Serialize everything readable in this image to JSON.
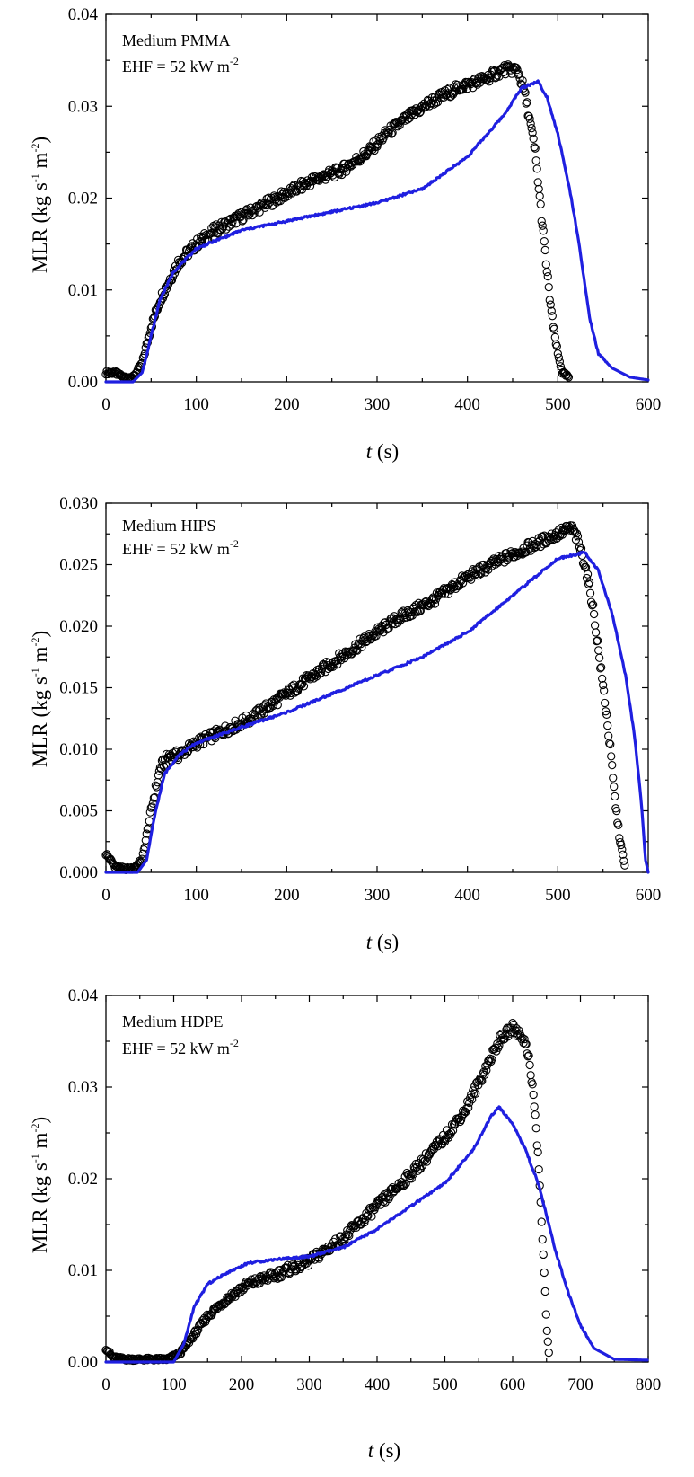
{
  "charts": [
    {
      "annotation": {
        "line1": "Medium PMMA",
        "line2_prefix": "EHF = 52 kW m",
        "line2_sup": "-2"
      },
      "ylabel": {
        "main": "MLR (kg s",
        "sup1": "-1",
        "mid": " m",
        "sup2": "-2",
        "end": ")"
      },
      "xlabel": {
        "var": "t",
        "unit": " (s)"
      }
    },
    {
      "annotation": {
        "line1": "Medium HIPS",
        "line2_prefix": "EHF = 52 kW m",
        "line2_sup": "-2"
      },
      "ylabel": {
        "main": "MLR (kg s",
        "sup1": "-1",
        "mid": " m",
        "sup2": "-2",
        "end": ")"
      },
      "xlabel": {
        "var": "t",
        "unit": " (s)"
      }
    },
    {
      "annotation": {
        "line1": "Medium HDPE",
        "line2_prefix": "EHF = 52 kW m",
        "line2_sup": "-2"
      },
      "ylabel": {
        "main": "MLR (kg s",
        "sup1": "-1",
        "mid": " m",
        "sup2": "-2",
        "end": ")"
      },
      "xlabel": {
        "var": "t",
        "unit": " (s)"
      }
    }
  ],
  "chart_data": [
    {
      "type": "scatter",
      "xlim": [
        0,
        600
      ],
      "ylim": [
        0,
        0.04
      ],
      "xticks": [
        0,
        100,
        200,
        300,
        400,
        500,
        600
      ],
      "yticks": [
        "0.00",
        "0.01",
        "0.02",
        "0.03",
        "0.04"
      ],
      "model_color": "#1f1fe0",
      "experiment": [
        [
          0,
          0.001
        ],
        [
          10,
          0.001
        ],
        [
          20,
          0.0005
        ],
        [
          30,
          0.0005
        ],
        [
          40,
          0.002
        ],
        [
          50,
          0.006
        ],
        [
          60,
          0.009
        ],
        [
          70,
          0.011
        ],
        [
          80,
          0.013
        ],
        [
          100,
          0.015
        ],
        [
          120,
          0.0165
        ],
        [
          150,
          0.018
        ],
        [
          180,
          0.0195
        ],
        [
          200,
          0.0205
        ],
        [
          230,
          0.022
        ],
        [
          260,
          0.023
        ],
        [
          290,
          0.025
        ],
        [
          310,
          0.027
        ],
        [
          330,
          0.0285
        ],
        [
          360,
          0.0305
        ],
        [
          390,
          0.032
        ],
        [
          420,
          0.033
        ],
        [
          440,
          0.034
        ],
        [
          455,
          0.034
        ],
        [
          462,
          0.032
        ],
        [
          468,
          0.029
        ],
        [
          475,
          0.025
        ],
        [
          480,
          0.02
        ],
        [
          485,
          0.015
        ],
        [
          490,
          0.01
        ],
        [
          495,
          0.006
        ],
        [
          500,
          0.003
        ],
        [
          505,
          0.001
        ],
        [
          512,
          0.0005
        ]
      ],
      "model": [
        [
          0,
          0
        ],
        [
          30,
          0
        ],
        [
          40,
          0.001
        ],
        [
          50,
          0.005
        ],
        [
          60,
          0.009
        ],
        [
          75,
          0.012
        ],
        [
          100,
          0.0145
        ],
        [
          150,
          0.0165
        ],
        [
          200,
          0.0175
        ],
        [
          250,
          0.0185
        ],
        [
          300,
          0.0195
        ],
        [
          350,
          0.021
        ],
        [
          400,
          0.0245
        ],
        [
          440,
          0.029
        ],
        [
          460,
          0.032
        ],
        [
          478,
          0.0327
        ],
        [
          488,
          0.031
        ],
        [
          500,
          0.027
        ],
        [
          515,
          0.02
        ],
        [
          525,
          0.014
        ],
        [
          535,
          0.007
        ],
        [
          545,
          0.003
        ],
        [
          560,
          0.0015
        ],
        [
          580,
          0.0005
        ],
        [
          600,
          0.0002
        ]
      ]
    },
    {
      "type": "scatter",
      "xlim": [
        0,
        600
      ],
      "ylim": [
        0,
        0.03
      ],
      "xticks": [
        0,
        100,
        200,
        300,
        400,
        500,
        600
      ],
      "yticks": [
        "0.000",
        "0.005",
        "0.010",
        "0.015",
        "0.020",
        "0.025",
        "0.030"
      ],
      "model_color": "#1f1fe0",
      "experiment": [
        [
          0,
          0.0015
        ],
        [
          10,
          0.0005
        ],
        [
          20,
          0.0003
        ],
        [
          30,
          0.0003
        ],
        [
          40,
          0.001
        ],
        [
          50,
          0.005
        ],
        [
          60,
          0.0085
        ],
        [
          70,
          0.0095
        ],
        [
          80,
          0.0095
        ],
        [
          100,
          0.0105
        ],
        [
          130,
          0.0115
        ],
        [
          160,
          0.0125
        ],
        [
          200,
          0.0145
        ],
        [
          240,
          0.0165
        ],
        [
          280,
          0.0185
        ],
        [
          320,
          0.0205
        ],
        [
          360,
          0.022
        ],
        [
          400,
          0.024
        ],
        [
          440,
          0.0255
        ],
        [
          470,
          0.0265
        ],
        [
          500,
          0.0275
        ],
        [
          515,
          0.028
        ],
        [
          522,
          0.027
        ],
        [
          530,
          0.025
        ],
        [
          538,
          0.022
        ],
        [
          545,
          0.018
        ],
        [
          552,
          0.014
        ],
        [
          558,
          0.01
        ],
        [
          563,
          0.006
        ],
        [
          568,
          0.003
        ],
        [
          574,
          0.0005
        ]
      ],
      "model": [
        [
          0,
          0
        ],
        [
          35,
          0
        ],
        [
          45,
          0.001
        ],
        [
          55,
          0.005
        ],
        [
          65,
          0.008
        ],
        [
          80,
          0.0095
        ],
        [
          100,
          0.0105
        ],
        [
          150,
          0.0118
        ],
        [
          200,
          0.013
        ],
        [
          250,
          0.0145
        ],
        [
          300,
          0.016
        ],
        [
          350,
          0.0175
        ],
        [
          400,
          0.0195
        ],
        [
          450,
          0.0225
        ],
        [
          500,
          0.0255
        ],
        [
          530,
          0.026
        ],
        [
          545,
          0.0245
        ],
        [
          560,
          0.021
        ],
        [
          575,
          0.016
        ],
        [
          585,
          0.011
        ],
        [
          592,
          0.006
        ],
        [
          597,
          0.001
        ],
        [
          600,
          0
        ]
      ]
    },
    {
      "type": "scatter",
      "xlim": [
        0,
        800
      ],
      "ylim": [
        0,
        0.04
      ],
      "xticks": [
        0,
        100,
        200,
        300,
        400,
        500,
        600,
        700,
        800
      ],
      "yticks": [
        "0.00",
        "0.01",
        "0.02",
        "0.03",
        "0.04"
      ],
      "model_color": "#1f1fe0",
      "experiment": [
        [
          0,
          0.0015
        ],
        [
          10,
          0.0005
        ],
        [
          30,
          0.0003
        ],
        [
          60,
          0.0003
        ],
        [
          90,
          0.0003
        ],
        [
          110,
          0.001
        ],
        [
          130,
          0.003
        ],
        [
          150,
          0.005
        ],
        [
          180,
          0.007
        ],
        [
          210,
          0.0085
        ],
        [
          250,
          0.0095
        ],
        [
          300,
          0.011
        ],
        [
          350,
          0.0135
        ],
        [
          400,
          0.017
        ],
        [
          450,
          0.0205
        ],
        [
          500,
          0.0245
        ],
        [
          530,
          0.0275
        ],
        [
          560,
          0.032
        ],
        [
          580,
          0.035
        ],
        [
          600,
          0.0365
        ],
        [
          615,
          0.0355
        ],
        [
          625,
          0.033
        ],
        [
          632,
          0.028
        ],
        [
          638,
          0.022
        ],
        [
          643,
          0.015
        ],
        [
          647,
          0.009
        ],
        [
          650,
          0.004
        ],
        [
          654,
          0.0005
        ]
      ],
      "model": [
        [
          0,
          0
        ],
        [
          100,
          0
        ],
        [
          115,
          0.002
        ],
        [
          130,
          0.006
        ],
        [
          150,
          0.0085
        ],
        [
          180,
          0.0098
        ],
        [
          210,
          0.0108
        ],
        [
          250,
          0.0112
        ],
        [
          300,
          0.0115
        ],
        [
          350,
          0.0125
        ],
        [
          400,
          0.0145
        ],
        [
          450,
          0.017
        ],
        [
          500,
          0.0195
        ],
        [
          540,
          0.023
        ],
        [
          570,
          0.027
        ],
        [
          580,
          0.0278
        ],
        [
          600,
          0.026
        ],
        [
          620,
          0.023
        ],
        [
          640,
          0.019
        ],
        [
          660,
          0.013
        ],
        [
          680,
          0.008
        ],
        [
          700,
          0.004
        ],
        [
          720,
          0.0015
        ],
        [
          750,
          0.0003
        ],
        [
          800,
          0.0002
        ]
      ]
    }
  ]
}
